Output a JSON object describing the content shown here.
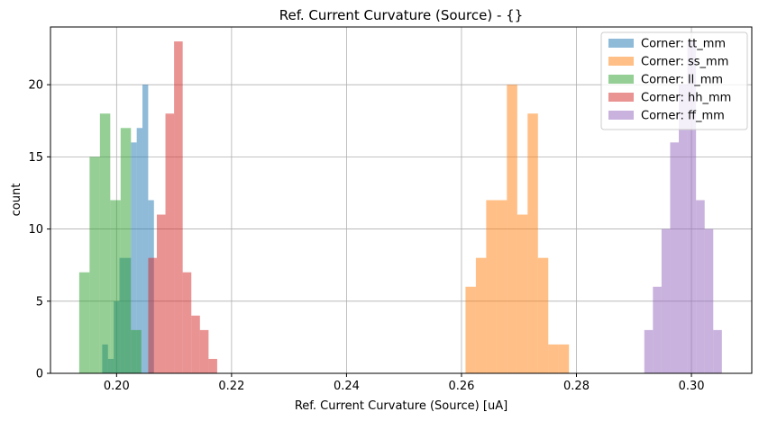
{
  "chart_data": {
    "type": "bar",
    "subtype": "histogram",
    "title": "Ref. Current Curvature (Source) - {}",
    "xlabel": "Ref. Current Curvature (Source) [uA]",
    "ylabel": "count",
    "xlim": [
      0.1885,
      0.3105
    ],
    "ylim": [
      0,
      24
    ],
    "xticks": [
      0.2,
      0.22,
      0.24,
      0.26,
      0.28,
      0.3
    ],
    "xtick_labels": [
      "0.20",
      "0.22",
      "0.24",
      "0.26",
      "0.28",
      "0.30"
    ],
    "yticks": [
      0,
      5,
      10,
      15,
      20
    ],
    "ytick_labels": [
      "0",
      "5",
      "10",
      "15",
      "20"
    ],
    "grid": true,
    "legend_position": "top-right",
    "alpha": 0.5,
    "series": [
      {
        "name": "Corner: tt_mm",
        "color": "#1f77b4",
        "bin_edges": [
          0.1975,
          0.1985,
          0.1995,
          0.2005,
          0.2015,
          0.2025,
          0.2035,
          0.2045,
          0.2055,
          0.2065
        ],
        "counts": [
          2,
          1,
          5,
          8,
          8,
          16,
          17,
          20,
          12
        ]
      },
      {
        "name": "Corner: ss_mm",
        "color": "#ff7f0e",
        "bin_edges": [
          0.2607,
          0.2625,
          0.2643,
          0.2661,
          0.2679,
          0.2697,
          0.2715,
          0.2733,
          0.2751,
          0.2769,
          0.2787
        ],
        "counts": [
          6,
          8,
          12,
          12,
          20,
          11,
          18,
          8,
          2,
          2
        ]
      },
      {
        "name": "Corner: ll_mm",
        "color": "#2ca02c",
        "bin_edges": [
          0.1935,
          0.1953,
          0.1971,
          0.1989,
          0.2007,
          0.2025,
          0.2043
        ],
        "counts": [
          7,
          15,
          18,
          12,
          17,
          3
        ]
      },
      {
        "name": "Corner: hh_mm",
        "color": "#d62728",
        "bin_edges": [
          0.2055,
          0.207,
          0.2085,
          0.21,
          0.2115,
          0.213,
          0.2145,
          0.216,
          0.2175
        ],
        "counts": [
          8,
          11,
          18,
          23,
          7,
          4,
          3,
          1
        ]
      },
      {
        "name": "Corner: ff_mm",
        "color": "#9467bd",
        "bin_edges": [
          0.2918,
          0.2933,
          0.2948,
          0.2963,
          0.2978,
          0.2993,
          0.3008,
          0.3023,
          0.3038,
          0.3053
        ],
        "counts": [
          3,
          6,
          10,
          16,
          20,
          23,
          12,
          10,
          3
        ]
      }
    ]
  }
}
